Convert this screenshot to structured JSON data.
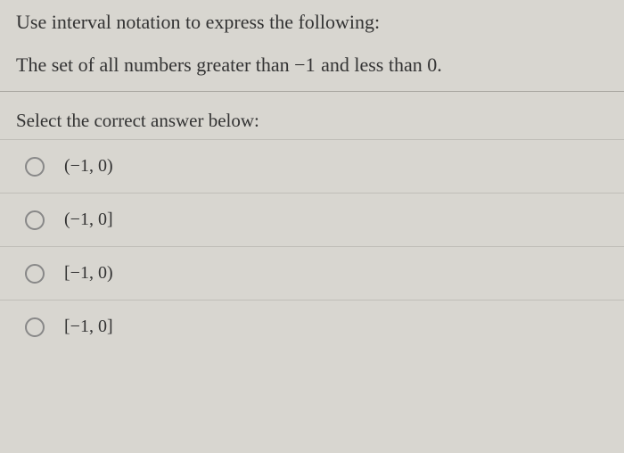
{
  "question": {
    "prompt": "Use interval notation to express the following:",
    "detail_prefix": "The set of all numbers greater than ",
    "detail_val1": "−1",
    "detail_mid": " and less than ",
    "detail_val2": "0",
    "detail_suffix": "."
  },
  "select_prompt": "Select the correct answer below:",
  "options": [
    {
      "label": "(−1, 0)"
    },
    {
      "label": "(−1, 0]"
    },
    {
      "label": "[−1, 0)"
    },
    {
      "label": "[−1, 0]"
    }
  ],
  "colors": {
    "background": "#d8d6d0",
    "text": "#333333",
    "divider": "#a8a6a0",
    "row_border": "#c0beb8",
    "radio_border": "#888888"
  },
  "fonts": {
    "body_family": "Georgia, Times New Roman, serif",
    "question_size_pt": 16,
    "option_size_pt": 15
  }
}
